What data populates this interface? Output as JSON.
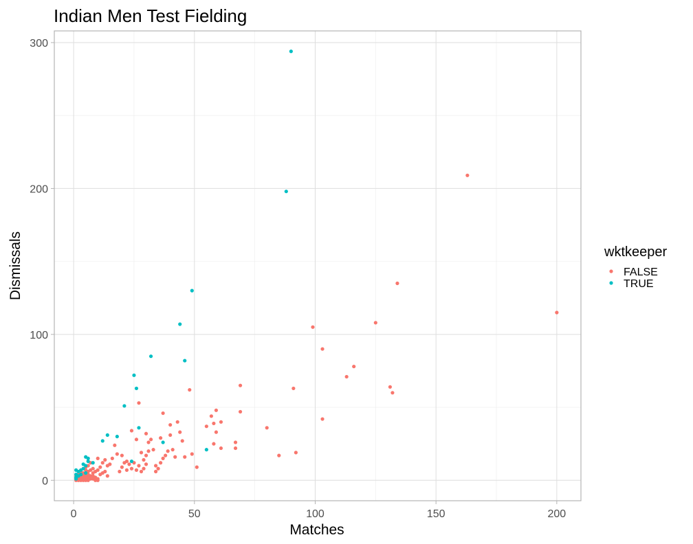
{
  "chart_data": {
    "type": "scatter",
    "title": "Indian Men Test Fielding",
    "xlabel": "Matches",
    "ylabel": "Dismissals",
    "xlim": [
      -8,
      210
    ],
    "ylim": [
      -14,
      308
    ],
    "xticks": [
      0,
      50,
      100,
      150,
      200
    ],
    "yticks": [
      0,
      100,
      200,
      300
    ],
    "xtick_labels": [
      "0",
      "50",
      "100",
      "150",
      "200"
    ],
    "ytick_labels": [
      "0",
      "100",
      "200",
      "300"
    ],
    "grid": true,
    "legend": {
      "title": "wktkeeper",
      "position": "right"
    },
    "series": [
      {
        "name": "FALSE",
        "color": "#F8766D",
        "points": [
          [
            163,
            209
          ],
          [
            200,
            115
          ],
          [
            134,
            135
          ],
          [
            125,
            108
          ],
          [
            99,
            105
          ],
          [
            103,
            90
          ],
          [
            116,
            78
          ],
          [
            113,
            71
          ],
          [
            131,
            64
          ],
          [
            132,
            60
          ],
          [
            91,
            63
          ],
          [
            69,
            65
          ],
          [
            48,
            62
          ],
          [
            69,
            47
          ],
          [
            103,
            42
          ],
          [
            80,
            36
          ],
          [
            92,
            19
          ],
          [
            85,
            17
          ],
          [
            59,
            48
          ],
          [
            57,
            44
          ],
          [
            61,
            40
          ],
          [
            55,
            37
          ],
          [
            58,
            39
          ],
          [
            59,
            33
          ],
          [
            67,
            26
          ],
          [
            67,
            22
          ],
          [
            58,
            25
          ],
          [
            61,
            22
          ],
          [
            37,
            46
          ],
          [
            43,
            40
          ],
          [
            40,
            38
          ],
          [
            44,
            33
          ],
          [
            40,
            31
          ],
          [
            36,
            29
          ],
          [
            45,
            27
          ],
          [
            41,
            21
          ],
          [
            39,
            20
          ],
          [
            38,
            17
          ],
          [
            42,
            16
          ],
          [
            46,
            16
          ],
          [
            49,
            18
          ],
          [
            51,
            9
          ],
          [
            27,
            53
          ],
          [
            24,
            34
          ],
          [
            30,
            32
          ],
          [
            26,
            28
          ],
          [
            32,
            28
          ],
          [
            31,
            26
          ],
          [
            33,
            21
          ],
          [
            28,
            19
          ],
          [
            31,
            20
          ],
          [
            30,
            17
          ],
          [
            29,
            14
          ],
          [
            25,
            12
          ],
          [
            27,
            10
          ],
          [
            29,
            8
          ],
          [
            26,
            7
          ],
          [
            28,
            6
          ],
          [
            30,
            11
          ],
          [
            34,
            10
          ],
          [
            35,
            8
          ],
          [
            36,
            12
          ],
          [
            37,
            15
          ],
          [
            34,
            6
          ],
          [
            17,
            24
          ],
          [
            18,
            18
          ],
          [
            20,
            17
          ],
          [
            16,
            15
          ],
          [
            22,
            13
          ],
          [
            21,
            12
          ],
          [
            23,
            11
          ],
          [
            20,
            9
          ],
          [
            22,
            7
          ],
          [
            24,
            8
          ],
          [
            19,
            6
          ],
          [
            15,
            11
          ],
          [
            10,
            15
          ],
          [
            12,
            12
          ],
          [
            13,
            14
          ],
          [
            14,
            10
          ],
          [
            11,
            9
          ],
          [
            10,
            7
          ],
          [
            13,
            6
          ],
          [
            12,
            5
          ],
          [
            11,
            4
          ],
          [
            14,
            3
          ],
          [
            9,
            6
          ],
          [
            8,
            8
          ],
          [
            7,
            12
          ],
          [
            6,
            10
          ],
          [
            7,
            7
          ],
          [
            5,
            9
          ],
          [
            8,
            5
          ],
          [
            6,
            4
          ],
          [
            7,
            3
          ],
          [
            9,
            2
          ],
          [
            10,
            1
          ],
          [
            8,
            1
          ],
          [
            6,
            2
          ],
          [
            5,
            3
          ],
          [
            4,
            5
          ],
          [
            3,
            6
          ],
          [
            4,
            4
          ],
          [
            3,
            3
          ],
          [
            2,
            4
          ],
          [
            2,
            2
          ],
          [
            1,
            3
          ],
          [
            1,
            1
          ],
          [
            2,
            1
          ],
          [
            3,
            1
          ],
          [
            4,
            1
          ],
          [
            5,
            1
          ],
          [
            1,
            0
          ],
          [
            2,
            0
          ],
          [
            3,
            0
          ],
          [
            4,
            0
          ],
          [
            5,
            0
          ],
          [
            6,
            0
          ],
          [
            9,
            0
          ],
          [
            10,
            0
          ],
          [
            5,
            7
          ],
          [
            6,
            6
          ],
          [
            4,
            2
          ],
          [
            3,
            2
          ],
          [
            2,
            3
          ],
          [
            1,
            2
          ],
          [
            7,
            1
          ],
          [
            8,
            3
          ]
        ]
      },
      {
        "name": "TRUE",
        "color": "#00BFC4",
        "points": [
          [
            90,
            294
          ],
          [
            88,
            198
          ],
          [
            49,
            130
          ],
          [
            44,
            107
          ],
          [
            32,
            85
          ],
          [
            46,
            82
          ],
          [
            25,
            72
          ],
          [
            26,
            63
          ],
          [
            21,
            51
          ],
          [
            27,
            36
          ],
          [
            14,
            31
          ],
          [
            18,
            30
          ],
          [
            12,
            27
          ],
          [
            37,
            26
          ],
          [
            55,
            21
          ],
          [
            24,
            13
          ],
          [
            5,
            16
          ],
          [
            6,
            15
          ],
          [
            6,
            13
          ],
          [
            8,
            12
          ],
          [
            4,
            11
          ],
          [
            5,
            10
          ],
          [
            4,
            8
          ],
          [
            3,
            7
          ],
          [
            1,
            7
          ],
          [
            2,
            6
          ],
          [
            5,
            5
          ],
          [
            3,
            4
          ],
          [
            1,
            4
          ],
          [
            2,
            3
          ],
          [
            1,
            2
          ],
          [
            1,
            1
          ]
        ]
      }
    ]
  }
}
